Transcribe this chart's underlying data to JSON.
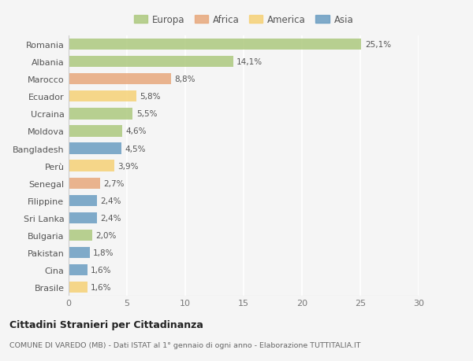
{
  "countries": [
    "Romania",
    "Albania",
    "Marocco",
    "Ecuador",
    "Ucraina",
    "Moldova",
    "Bangladesh",
    "Perù",
    "Senegal",
    "Filippine",
    "Sri Lanka",
    "Bulgaria",
    "Pakistan",
    "Cina",
    "Brasile"
  ],
  "values": [
    25.1,
    14.1,
    8.8,
    5.8,
    5.5,
    4.6,
    4.5,
    3.9,
    2.7,
    2.4,
    2.4,
    2.0,
    1.8,
    1.6,
    1.6
  ],
  "labels": [
    "25,1%",
    "14,1%",
    "8,8%",
    "5,8%",
    "5,5%",
    "4,6%",
    "4,5%",
    "3,9%",
    "2,7%",
    "2,4%",
    "2,4%",
    "2,0%",
    "1,8%",
    "1,6%",
    "1,6%"
  ],
  "continents": [
    "Europa",
    "Europa",
    "Africa",
    "America",
    "Europa",
    "Europa",
    "Asia",
    "America",
    "Africa",
    "Asia",
    "Asia",
    "Europa",
    "Asia",
    "Asia",
    "America"
  ],
  "colors": {
    "Europa": "#adc97e",
    "Africa": "#e8a87c",
    "America": "#f5d176",
    "Asia": "#6b9dc2"
  },
  "legend_order": [
    "Europa",
    "Africa",
    "America",
    "Asia"
  ],
  "xlim": [
    0,
    30
  ],
  "xticks": [
    0,
    5,
    10,
    15,
    20,
    25,
    30
  ],
  "title": "Cittadini Stranieri per Cittadinanza",
  "subtitle": "COMUNE DI VAREDO (MB) - Dati ISTAT al 1° gennaio di ogni anno - Elaborazione TUTTITALIA.IT",
  "bg_color": "#f5f5f5",
  "grid_color": "#ffffff",
  "bar_height": 0.65
}
